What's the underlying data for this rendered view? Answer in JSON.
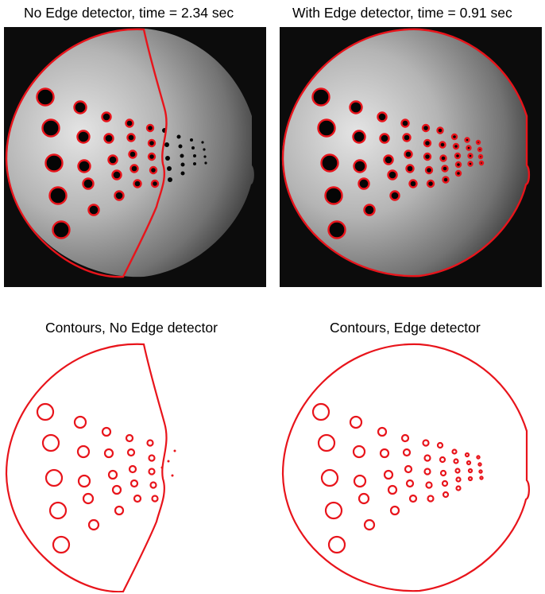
{
  "panels": {
    "top_left": {
      "title": "No Edge detector, time = 2.34 sec"
    },
    "top_right": {
      "title": "With Edge detector, time = 0.91 sec"
    },
    "bottom_left": {
      "title": "Contours, No Edge detector"
    },
    "bottom_right": {
      "title": "Contours, Edge detector"
    }
  },
  "colors": {
    "contour": "#e8141b",
    "background_dark": "#0c0c0c",
    "page": "#ffffff"
  }
}
